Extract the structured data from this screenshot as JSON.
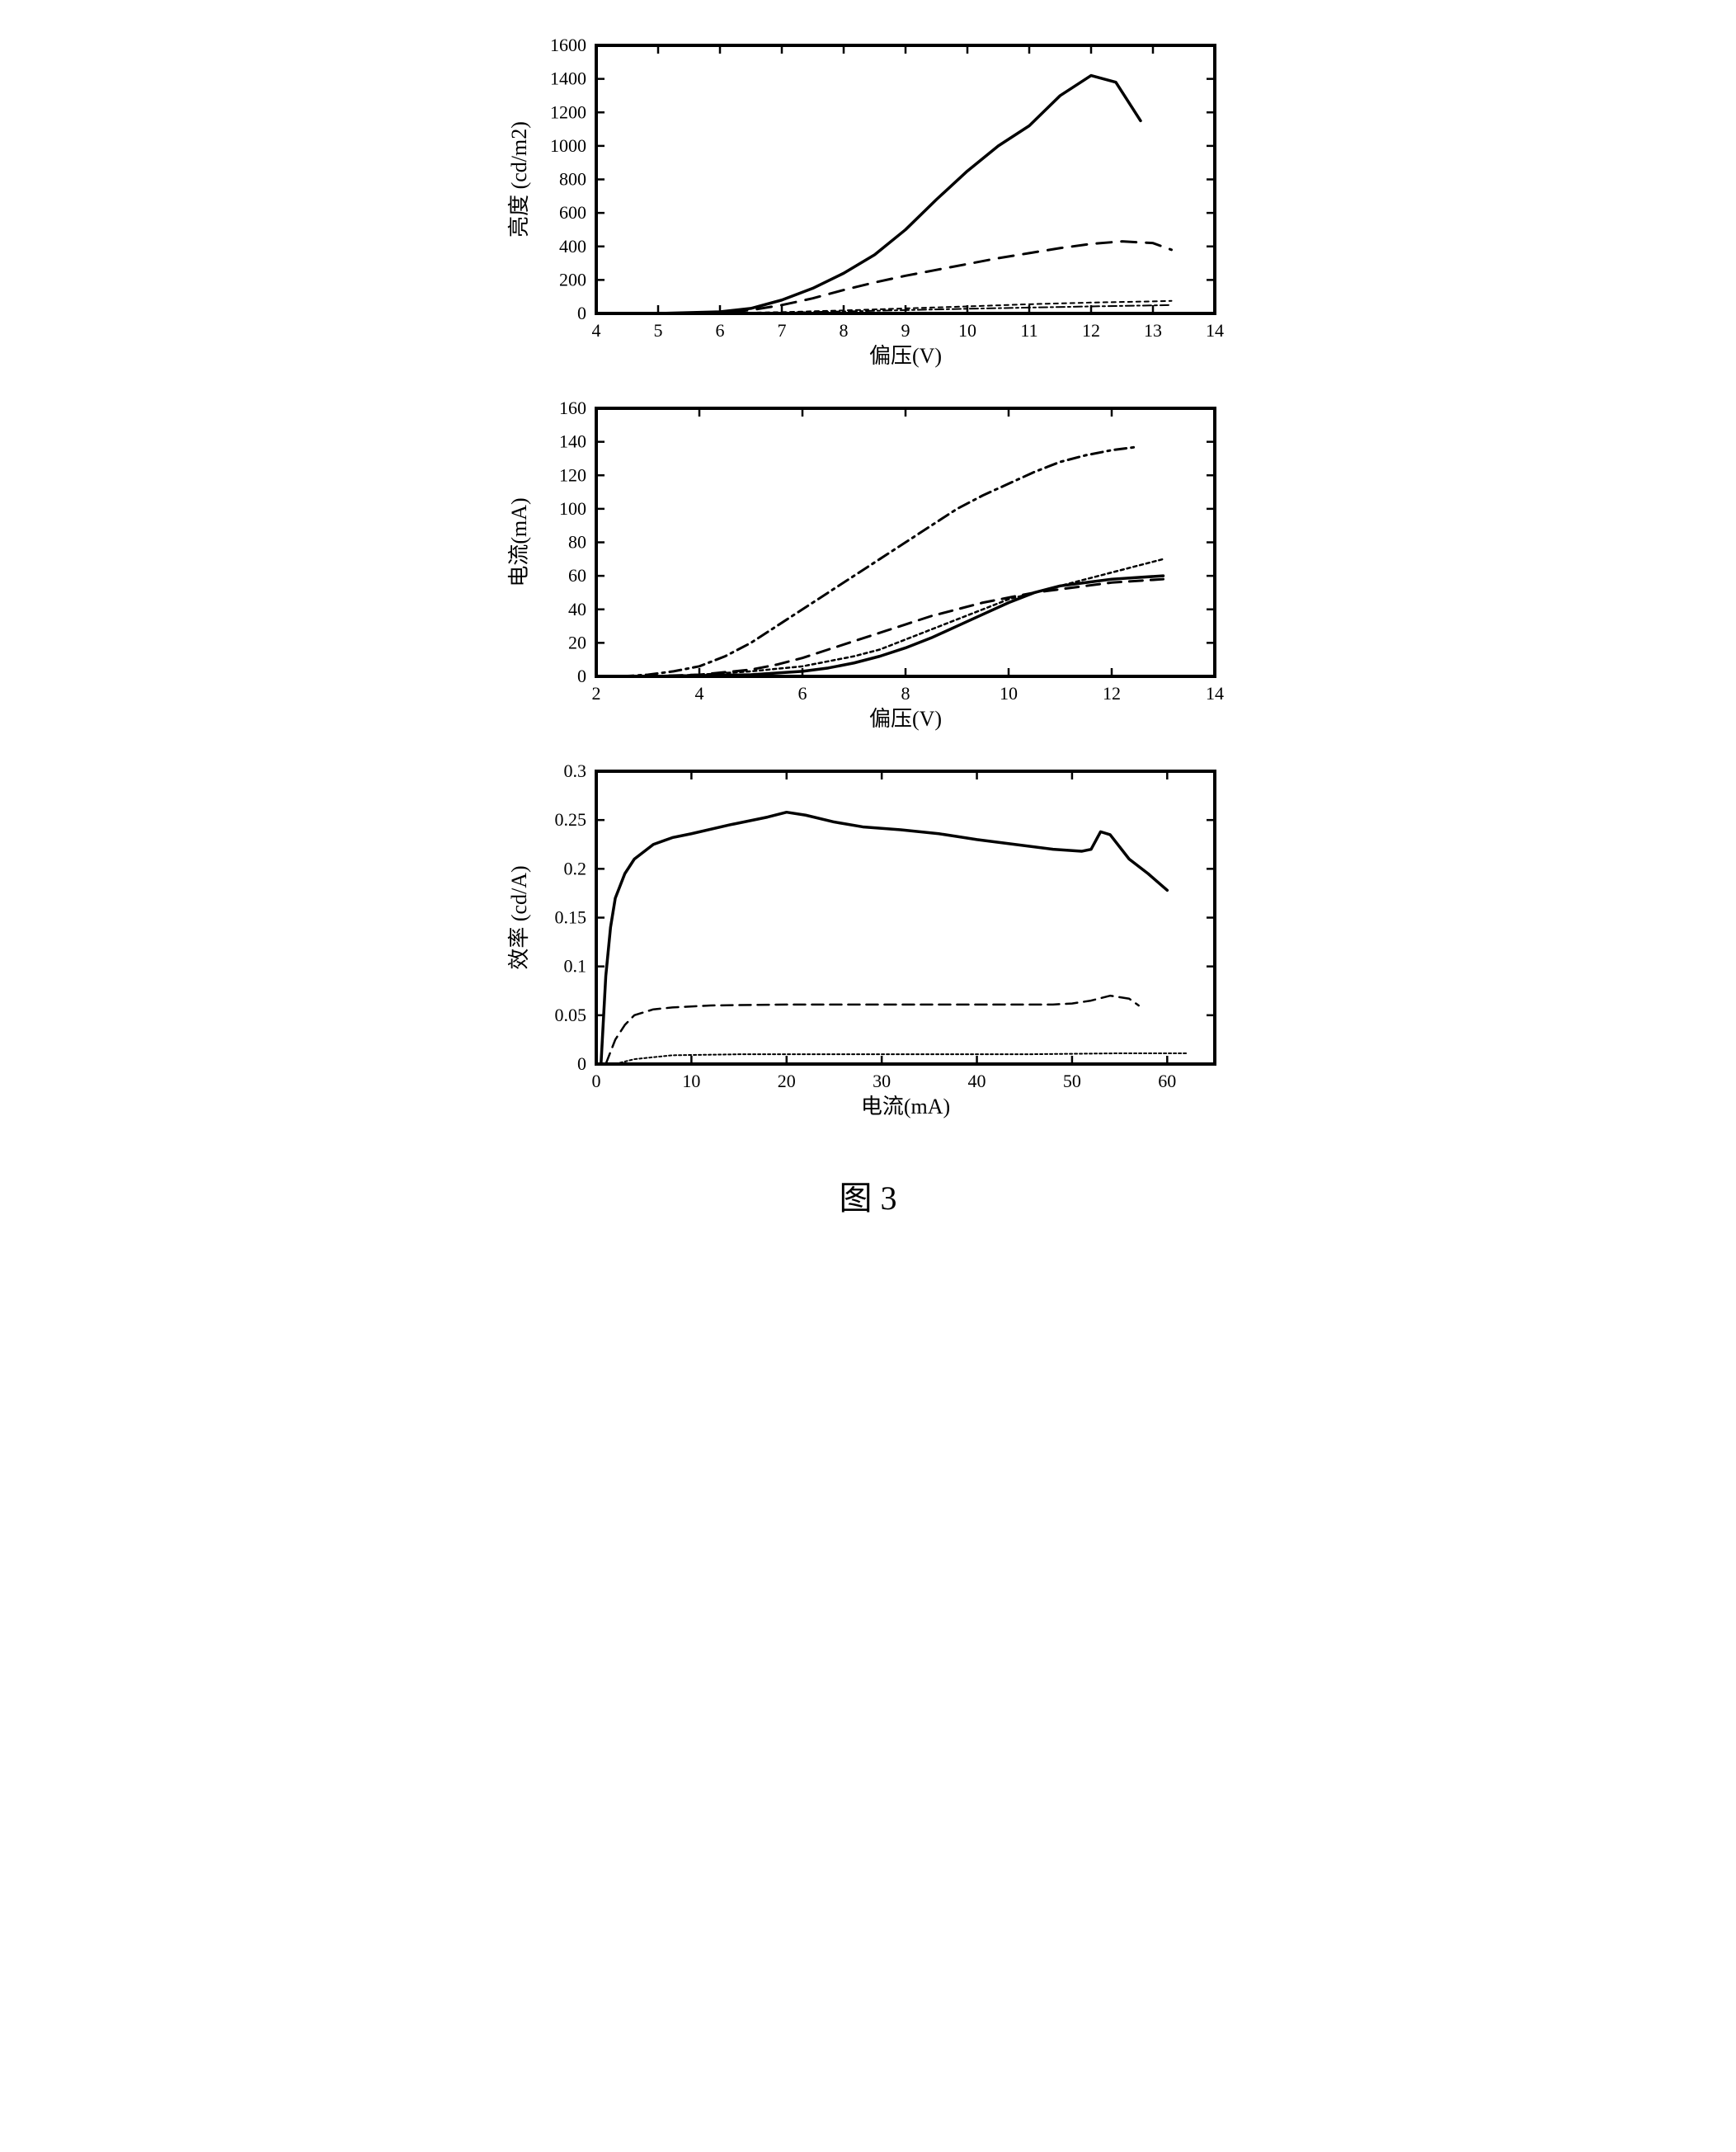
{
  "figure_caption": "图 3",
  "background_color": "#ffffff",
  "axis_color": "#000000",
  "line_stroke": "#000000",
  "tick_font_size": 22,
  "label_font_size": 26,
  "line_width_main": 3.5,
  "line_width_thin": 2.5,
  "panels": [
    {
      "id": "brightness",
      "ylabel": "亮度 (cd/m2)",
      "xlabel": "偏压(V)",
      "xlim": [
        4,
        14
      ],
      "ylim": [
        0,
        1600
      ],
      "xticks": [
        4,
        5,
        6,
        7,
        8,
        9,
        10,
        11,
        12,
        13,
        14
      ],
      "yticks": [
        0,
        200,
        400,
        600,
        800,
        1000,
        1200,
        1400,
        1600
      ],
      "series": [
        {
          "name": "solid",
          "dash": "none",
          "width": 3.5,
          "data": [
            [
              5,
              0
            ],
            [
              5.5,
              5
            ],
            [
              6,
              10
            ],
            [
              6.5,
              30
            ],
            [
              7,
              80
            ],
            [
              7.5,
              150
            ],
            [
              8,
              240
            ],
            [
              8.5,
              350
            ],
            [
              9,
              500
            ],
            [
              9.5,
              680
            ],
            [
              10,
              850
            ],
            [
              10.5,
              1000
            ],
            [
              11,
              1120
            ],
            [
              11.5,
              1300
            ],
            [
              12,
              1420
            ],
            [
              12.4,
              1380
            ],
            [
              12.8,
              1150
            ]
          ]
        },
        {
          "name": "long-dash",
          "dash": "18 12",
          "width": 3.0,
          "data": [
            [
              5,
              0
            ],
            [
              6,
              5
            ],
            [
              6.5,
              20
            ],
            [
              7,
              50
            ],
            [
              7.5,
              90
            ],
            [
              8,
              140
            ],
            [
              8.5,
              185
            ],
            [
              9,
              225
            ],
            [
              9.5,
              260
            ],
            [
              10,
              295
            ],
            [
              10.5,
              330
            ],
            [
              11,
              360
            ],
            [
              11.5,
              390
            ],
            [
              12,
              415
            ],
            [
              12.5,
              430
            ],
            [
              13,
              420
            ],
            [
              13.3,
              380
            ]
          ]
        },
        {
          "name": "short-dash",
          "dash": "5 5",
          "width": 2.0,
          "data": [
            [
              5,
              0
            ],
            [
              6,
              2
            ],
            [
              7,
              8
            ],
            [
              8,
              18
            ],
            [
              9,
              30
            ],
            [
              10,
              42
            ],
            [
              11,
              55
            ],
            [
              12,
              65
            ],
            [
              13,
              72
            ],
            [
              13.3,
              75
            ]
          ]
        },
        {
          "name": "dashdot",
          "dash": "10 4 3 4",
          "width": 2.0,
          "data": [
            [
              5,
              0
            ],
            [
              6,
              1
            ],
            [
              7,
              5
            ],
            [
              8,
              12
            ],
            [
              9,
              20
            ],
            [
              10,
              28
            ],
            [
              11,
              35
            ],
            [
              12,
              42
            ],
            [
              13,
              48
            ],
            [
              13.3,
              50
            ]
          ]
        }
      ]
    },
    {
      "id": "current",
      "ylabel": "电流(mA)",
      "xlabel": "偏压(V)",
      "xlim": [
        2,
        14
      ],
      "ylim": [
        0,
        160
      ],
      "xticks": [
        2,
        4,
        6,
        8,
        10,
        12,
        14
      ],
      "yticks": [
        0,
        20,
        40,
        60,
        80,
        100,
        120,
        140,
        160
      ],
      "series": [
        {
          "name": "dashdot",
          "dash": "14 6 3 6",
          "width": 3.0,
          "data": [
            [
              2.5,
              0
            ],
            [
              3,
              1
            ],
            [
              3.5,
              3
            ],
            [
              4,
              6
            ],
            [
              4.5,
              12
            ],
            [
              5,
              20
            ],
            [
              5.5,
              30
            ],
            [
              6,
              40
            ],
            [
              6.5,
              50
            ],
            [
              7,
              60
            ],
            [
              7.5,
              70
            ],
            [
              8,
              80
            ],
            [
              8.5,
              90
            ],
            [
              9,
              100
            ],
            [
              9.5,
              108
            ],
            [
              10,
              115
            ],
            [
              10.5,
              122
            ],
            [
              11,
              128
            ],
            [
              11.5,
              132
            ],
            [
              12,
              135
            ],
            [
              12.5,
              137
            ]
          ]
        },
        {
          "name": "short-dash",
          "dash": "4 4",
          "width": 2.5,
          "data": [
            [
              3,
              0
            ],
            [
              4,
              1
            ],
            [
              5,
              3
            ],
            [
              6,
              6
            ],
            [
              7,
              12
            ],
            [
              7.5,
              16
            ],
            [
              8,
              22
            ],
            [
              8.5,
              28
            ],
            [
              9,
              34
            ],
            [
              9.5,
              40
            ],
            [
              10,
              46
            ],
            [
              10.5,
              50
            ],
            [
              11,
              54
            ],
            [
              11.5,
              58
            ],
            [
              12,
              62
            ],
            [
              12.5,
              66
            ],
            [
              13,
              70
            ]
          ]
        },
        {
          "name": "long-dash",
          "dash": "16 10",
          "width": 3.0,
          "data": [
            [
              3,
              0
            ],
            [
              4,
              1
            ],
            [
              5,
              4
            ],
            [
              5.5,
              7
            ],
            [
              6,
              11
            ],
            [
              6.5,
              16
            ],
            [
              7,
              21
            ],
            [
              7.5,
              26
            ],
            [
              8,
              31
            ],
            [
              8.5,
              36
            ],
            [
              9,
              40
            ],
            [
              9.5,
              44
            ],
            [
              10,
              47
            ],
            [
              10.5,
              50
            ],
            [
              11,
              52
            ],
            [
              11.5,
              54
            ],
            [
              12,
              56
            ],
            [
              12.5,
              57
            ],
            [
              13,
              58
            ]
          ]
        },
        {
          "name": "solid",
          "dash": "none",
          "width": 3.5,
          "data": [
            [
              3,
              0
            ],
            [
              4,
              0.5
            ],
            [
              5,
              1
            ],
            [
              6,
              3
            ],
            [
              6.5,
              5
            ],
            [
              7,
              8
            ],
            [
              7.5,
              12
            ],
            [
              8,
              17
            ],
            [
              8.5,
              23
            ],
            [
              9,
              30
            ],
            [
              9.5,
              37
            ],
            [
              10,
              44
            ],
            [
              10.5,
              50
            ],
            [
              11,
              54
            ],
            [
              11.5,
              56
            ],
            [
              12,
              58
            ],
            [
              12.5,
              59
            ],
            [
              13,
              60
            ]
          ]
        }
      ]
    },
    {
      "id": "efficiency",
      "ylabel": "效率 (cd/A)",
      "xlabel": "电流(mA)",
      "xlim": [
        0,
        65
      ],
      "ylim": [
        0,
        0.3
      ],
      "xticks": [
        0,
        10,
        20,
        30,
        40,
        50,
        60
      ],
      "yticks": [
        0,
        0.05,
        0.1,
        0.15,
        0.2,
        0.25,
        0.3
      ],
      "series": [
        {
          "name": "solid",
          "dash": "none",
          "width": 3.5,
          "data": [
            [
              0.5,
              0
            ],
            [
              1,
              0.09
            ],
            [
              1.5,
              0.14
            ],
            [
              2,
              0.17
            ],
            [
              3,
              0.195
            ],
            [
              4,
              0.21
            ],
            [
              6,
              0.225
            ],
            [
              8,
              0.232
            ],
            [
              10,
              0.236
            ],
            [
              14,
              0.245
            ],
            [
              18,
              0.253
            ],
            [
              20,
              0.258
            ],
            [
              22,
              0.255
            ],
            [
              25,
              0.248
            ],
            [
              28,
              0.243
            ],
            [
              32,
              0.24
            ],
            [
              36,
              0.236
            ],
            [
              40,
              0.23
            ],
            [
              44,
              0.225
            ],
            [
              48,
              0.22
            ],
            [
              51,
              0.218
            ],
            [
              52,
              0.22
            ],
            [
              53,
              0.238
            ],
            [
              54,
              0.235
            ],
            [
              56,
              0.21
            ],
            [
              58,
              0.195
            ],
            [
              60,
              0.178
            ]
          ]
        },
        {
          "name": "long-dash",
          "dash": "14 8",
          "width": 2.5,
          "data": [
            [
              1,
              0
            ],
            [
              2,
              0.025
            ],
            [
              3,
              0.04
            ],
            [
              4,
              0.05
            ],
            [
              6,
              0.056
            ],
            [
              8,
              0.058
            ],
            [
              12,
              0.06
            ],
            [
              20,
              0.061
            ],
            [
              30,
              0.061
            ],
            [
              40,
              0.061
            ],
            [
              48,
              0.061
            ],
            [
              50,
              0.062
            ],
            [
              52,
              0.065
            ],
            [
              54,
              0.07
            ],
            [
              56,
              0.067
            ],
            [
              57,
              0.06
            ]
          ]
        },
        {
          "name": "short-dash",
          "dash": "3 3",
          "width": 2.0,
          "data": [
            [
              2,
              0
            ],
            [
              4,
              0.005
            ],
            [
              8,
              0.009
            ],
            [
              15,
              0.01
            ],
            [
              25,
              0.01
            ],
            [
              35,
              0.01
            ],
            [
              45,
              0.01
            ],
            [
              55,
              0.011
            ],
            [
              62,
              0.011
            ]
          ]
        }
      ]
    }
  ]
}
